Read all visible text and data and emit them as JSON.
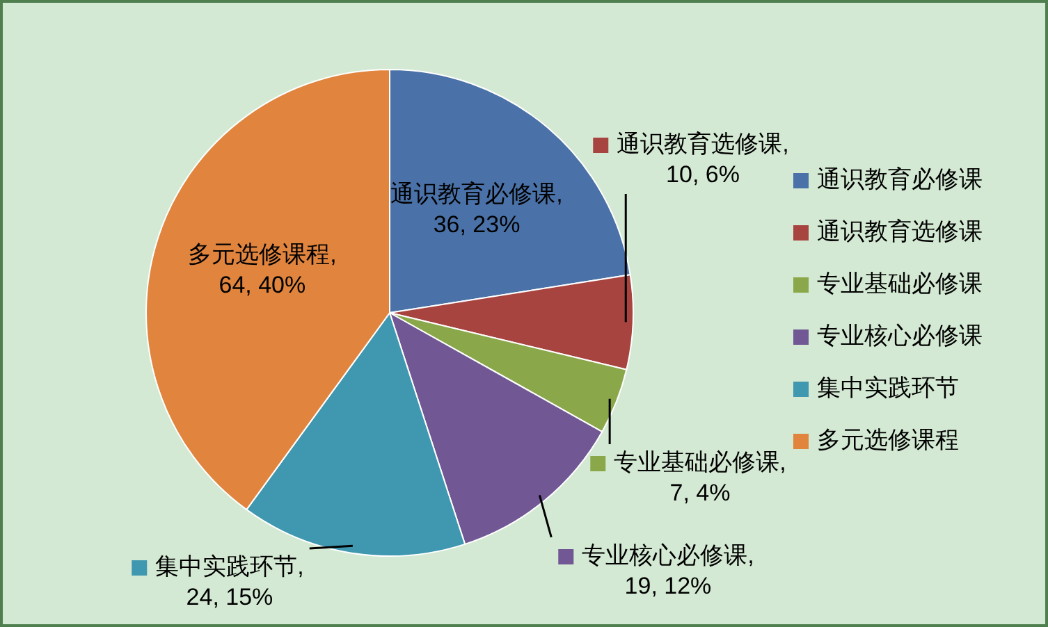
{
  "chart_data": {
    "type": "pie",
    "categories": [
      "通识教育必修课",
      "通识教育选修课",
      "专业基础必修课",
      "专业核心必修课",
      "集中实践环节",
      "多元选修课程"
    ],
    "values": [
      36,
      10,
      7,
      19,
      24,
      64
    ],
    "value_labels": [
      "通识教育必修课, 36, 23%",
      "通识教育选修课, 10, 6%",
      "专业基础必修课, 7, 4%",
      "专业核心必修课, 19, 12%",
      "集中实践环节, 24, 15%",
      "多元选修课程, 64, 40%"
    ],
    "colors": [
      "#4a72a8",
      "#a84440",
      "#8aa84a",
      "#715895",
      "#3f97b0",
      "#e0843e"
    ],
    "legend": "right"
  }
}
